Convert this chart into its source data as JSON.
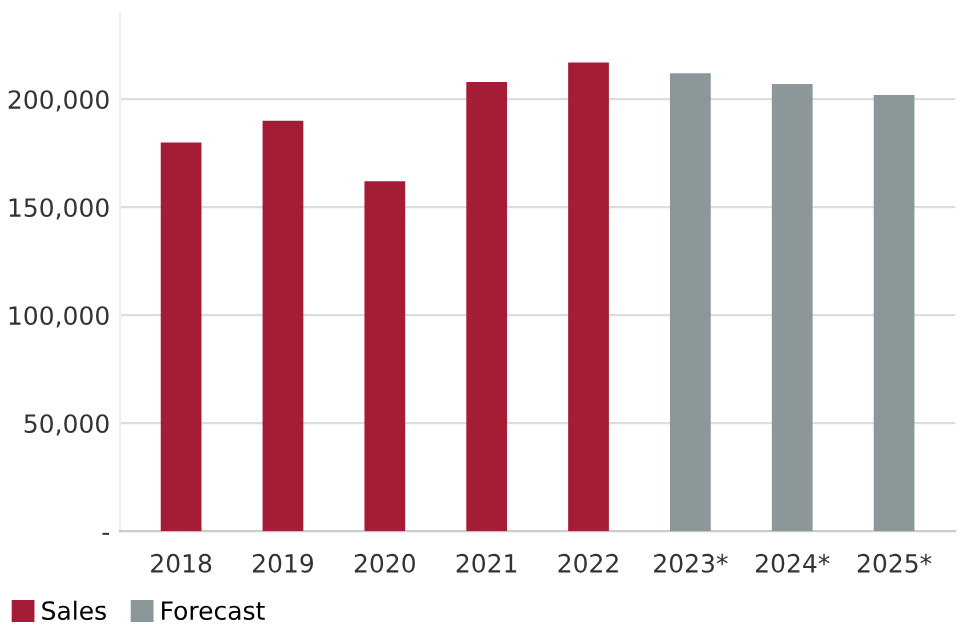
{
  "chart_data": {
    "type": "bar",
    "categories": [
      "2018",
      "2019",
      "2020",
      "2021",
      "2022",
      "2023*",
      "2024*",
      "2025*"
    ],
    "series": [
      {
        "name": "Sales",
        "color": "#a51c36",
        "values": [
          180000,
          190000,
          162000,
          208000,
          217000,
          null,
          null,
          null
        ]
      },
      {
        "name": "Forecast",
        "color": "#8c979a",
        "values": [
          null,
          null,
          null,
          null,
          null,
          212000,
          207000,
          202000
        ]
      }
    ],
    "yticks": [
      {
        "value": 0,
        "label": "-"
      },
      {
        "value": 50000,
        "label": "50,000"
      },
      {
        "value": 100000,
        "label": "100,000"
      },
      {
        "value": 150000,
        "label": "150,000"
      },
      {
        "value": 200000,
        "label": "200,000"
      }
    ],
    "ylim": [
      0,
      240000
    ],
    "grid": "y",
    "legend": "bottom left"
  }
}
